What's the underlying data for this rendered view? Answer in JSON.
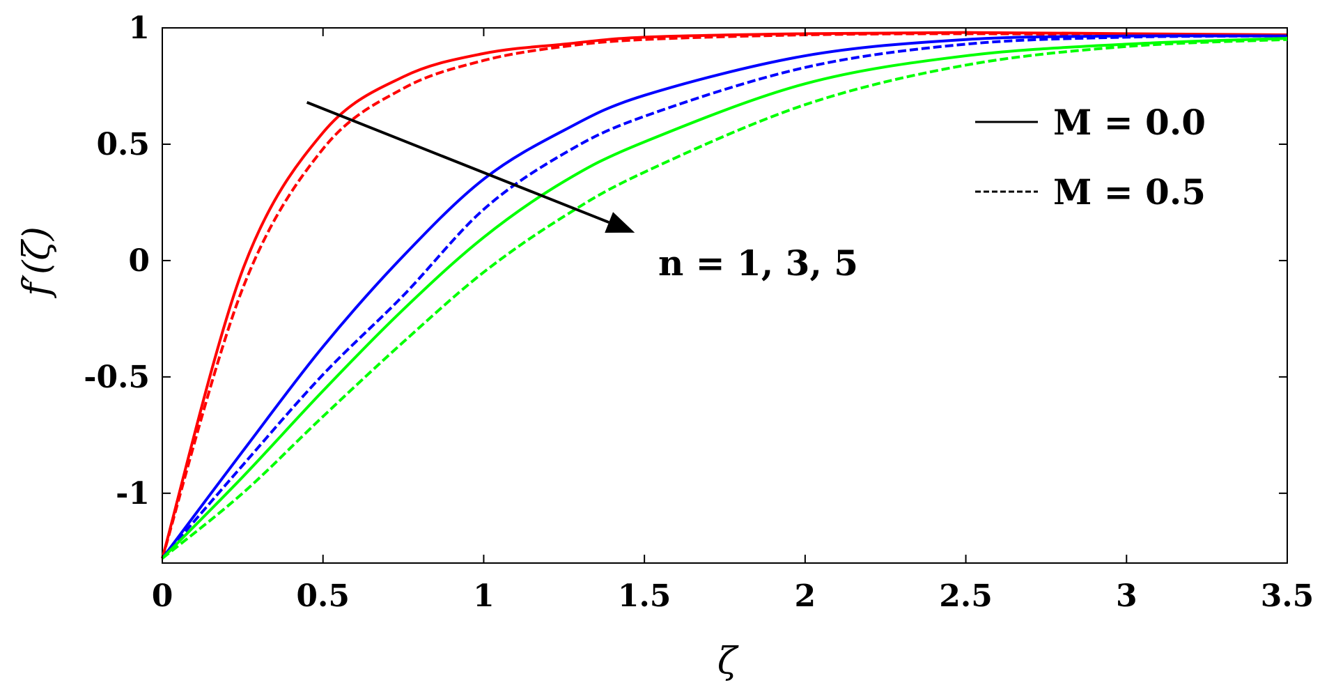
{
  "chart_data": {
    "type": "line",
    "xlabel": "ζ",
    "ylabel": "f′(ζ)",
    "xlim": [
      0,
      3.5
    ],
    "ylim": [
      -1.3,
      1
    ],
    "xticks": [
      "0",
      "0.5",
      "1",
      "1.5",
      "2",
      "2.5",
      "3",
      "3.5"
    ],
    "yticks": [
      "1",
      "0.5",
      "0",
      "-0.5",
      "-1"
    ],
    "grid": false,
    "legend": {
      "placement": "top-right",
      "entries": [
        {
          "label": "M = 0.0",
          "style": "solid"
        },
        {
          "label": "M = 0.5",
          "style": "dashed"
        }
      ]
    },
    "annotation": {
      "text": "n = 1, 3, 5",
      "arrow_from": [
        0.45,
        0.68
      ],
      "arrow_to": [
        1.47,
        0.12
      ]
    },
    "x": [
      0,
      0.25,
      0.5,
      0.75,
      1.0,
      1.25,
      1.5,
      2.0,
      2.5,
      3.0,
      3.5
    ],
    "series": [
      {
        "n": "1",
        "style": "solid",
        "color": "#ff0000",
        "values": [
          -1.28,
          -0.04,
          0.55,
          0.79,
          0.89,
          0.93,
          0.96,
          0.975,
          0.98,
          0.975,
          0.97
        ]
      },
      {
        "n": "1",
        "style": "dashed",
        "color": "#ff0000",
        "values": [
          -1.28,
          -0.12,
          0.48,
          0.74,
          0.86,
          0.92,
          0.95,
          0.97,
          0.975,
          0.97,
          0.965
        ]
      },
      {
        "n": "3",
        "style": "solid",
        "color": "#0000ff",
        "values": [
          -1.28,
          -0.82,
          -0.37,
          0.02,
          0.35,
          0.56,
          0.71,
          0.88,
          0.95,
          0.965,
          0.965
        ]
      },
      {
        "n": "3",
        "style": "dashed",
        "color": "#0000ff",
        "values": [
          -1.28,
          -0.88,
          -0.49,
          -0.15,
          0.22,
          0.46,
          0.62,
          0.83,
          0.93,
          0.96,
          0.965
        ]
      },
      {
        "n": "5",
        "style": "solid",
        "color": "#00ff00",
        "values": [
          -1.28,
          -0.93,
          -0.56,
          -0.21,
          0.1,
          0.34,
          0.51,
          0.76,
          0.88,
          0.93,
          0.955
        ]
      },
      {
        "n": "5",
        "style": "dashed",
        "color": "#00ff00",
        "values": [
          -1.28,
          -1.0,
          -0.67,
          -0.35,
          -0.05,
          0.19,
          0.38,
          0.67,
          0.84,
          0.92,
          0.95
        ]
      }
    ]
  }
}
